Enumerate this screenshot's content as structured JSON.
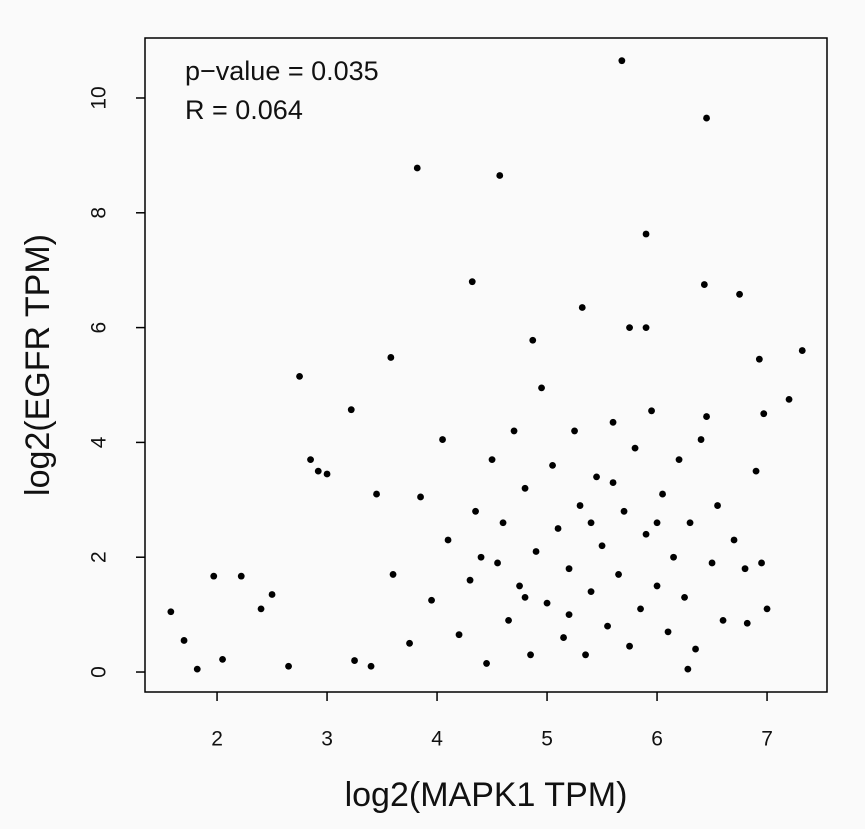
{
  "chart_data": {
    "type": "scatter",
    "annotations": [
      "p−value = 0.035",
      "R = 0.064"
    ],
    "xlabel": "log2(MAPK1 TPM)",
    "ylabel": "log2(EGFR TPM)",
    "color": "#000000",
    "xlim": [
      1.345,
      7.545
    ],
    "ylim": [
      -0.348,
      11.045
    ],
    "xticks": [
      2,
      3,
      4,
      5,
      6,
      7
    ],
    "yticks": [
      0,
      2,
      4,
      6,
      8,
      10
    ],
    "x": [
      5.68,
      6.45,
      3.82,
      4.57,
      5.9,
      4.32,
      6.43,
      6.75,
      5.32,
      5.75,
      5.9,
      7.32,
      4.87,
      6.93,
      3.58,
      2.75,
      7.2,
      6.97,
      3.22,
      6.45,
      1.58,
      1.7,
      1.82,
      1.97,
      2.22,
      6.28,
      7.0,
      6.82,
      2.65,
      2.92,
      2.05,
      2.4,
      2.5,
      2.85,
      3.0,
      3.25,
      3.45,
      3.4,
      3.6,
      3.75,
      3.85,
      3.95,
      4.05,
      4.1,
      4.2,
      4.3,
      4.35,
      4.45,
      4.5,
      4.55,
      4.6,
      4.65,
      4.7,
      4.75,
      4.8,
      4.85,
      4.9,
      4.95,
      5.0,
      5.05,
      5.1,
      5.15,
      5.2,
      5.25,
      5.3,
      5.35,
      5.4,
      5.45,
      5.5,
      5.55,
      5.6,
      5.65,
      5.7,
      5.75,
      5.8,
      5.85,
      5.9,
      5.95,
      6.0,
      6.05,
      6.1,
      6.15,
      6.2,
      6.25,
      6.3,
      6.35,
      6.4,
      6.5,
      6.55,
      6.6,
      6.7,
      6.8,
      6.9,
      6.95,
      5.2,
      4.4,
      5.6,
      6.0,
      4.8,
      5.4
    ],
    "values": [
      10.65,
      9.65,
      8.78,
      8.65,
      7.63,
      6.8,
      6.75,
      6.58,
      6.35,
      6.0,
      6.0,
      5.6,
      5.78,
      5.45,
      5.48,
      5.15,
      4.75,
      4.5,
      4.57,
      4.45,
      1.05,
      0.55,
      0.05,
      1.67,
      1.67,
      0.05,
      1.1,
      0.85,
      0.1,
      3.5,
      0.22,
      1.1,
      1.35,
      3.7,
      3.45,
      0.2,
      3.1,
      0.1,
      1.7,
      0.5,
      3.05,
      1.25,
      4.05,
      2.3,
      0.65,
      1.6,
      2.8,
      0.15,
      3.7,
      1.9,
      2.6,
      0.9,
      4.2,
      1.5,
      3.2,
      0.3,
      2.1,
      4.95,
      1.2,
      3.6,
      2.5,
      0.6,
      1.8,
      4.2,
      2.9,
      0.3,
      1.4,
      3.4,
      2.2,
      0.8,
      4.35,
      1.7,
      2.8,
      0.45,
      3.9,
      1.1,
      2.4,
      4.55,
      1.5,
      3.1,
      0.7,
      2.0,
      3.7,
      1.3,
      2.6,
      0.4,
      4.05,
      1.9,
      2.9,
      0.9,
      2.3,
      1.8,
      3.5,
      1.9,
      1.0,
      2.0,
      3.3,
      2.6,
      1.3,
      2.6
    ]
  }
}
